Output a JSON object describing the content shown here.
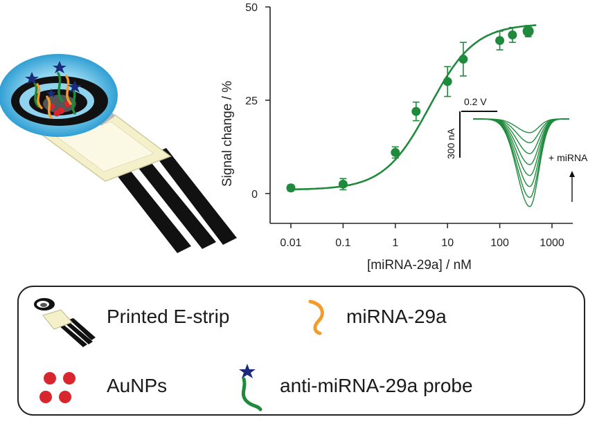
{
  "colors": {
    "series": "#1f8a3c",
    "axis": "#222222",
    "probe_star": "#1b2a7a",
    "mirna_strand": "#f39c2b",
    "aunp": "#d8262e",
    "electrode_glow": "#6ec6e8",
    "strip_body": "#f4f0c9"
  },
  "chart_data": {
    "type": "scatter",
    "xscale": "log",
    "xlabel": "[miRNA-29a] / nM",
    "ylabel": "Signal change / %",
    "xlim": [
      0.004,
      2500
    ],
    "ylim": [
      -8,
      50
    ],
    "xticks": [
      0.01,
      0.1,
      1,
      10,
      100,
      1000
    ],
    "xtick_labels": [
      "0.01",
      "0.1",
      "1",
      "10",
      "100",
      "1000"
    ],
    "yticks": [
      0,
      25,
      50
    ],
    "ytick_labels": [
      "0",
      "25",
      "50"
    ],
    "grid": false,
    "series": [
      {
        "x": [
          0.01,
          0.1,
          1,
          2.5,
          10,
          20,
          100,
          175,
          350
        ],
        "y": [
          1.5,
          2.5,
          11,
          22,
          30,
          36,
          41,
          42.5,
          43.5
        ],
        "err": [
          0.8,
          1.5,
          1.5,
          2.5,
          4,
          4.5,
          2.5,
          2,
          1.5
        ]
      }
    ],
    "fit": {
      "model": "hill",
      "bottom": 1,
      "top": 45.5,
      "ec50": 4.5,
      "hill_slope": 1
    },
    "inset": {
      "description": "square-wave voltammograms",
      "voltage_scale_label": "0.2 V",
      "current_scale_label": "300 nA",
      "annotation": "+ miRNA",
      "peak_depths": [
        0.15,
        0.26,
        0.38,
        0.5,
        0.62,
        0.74,
        0.86,
        0.96
      ]
    }
  },
  "legend": {
    "items": [
      {
        "label": "Printed E-strip"
      },
      {
        "label": "miRNA-29a"
      },
      {
        "label": "AuNPs"
      },
      {
        "label": "anti-miRNA-29a probe"
      }
    ]
  }
}
